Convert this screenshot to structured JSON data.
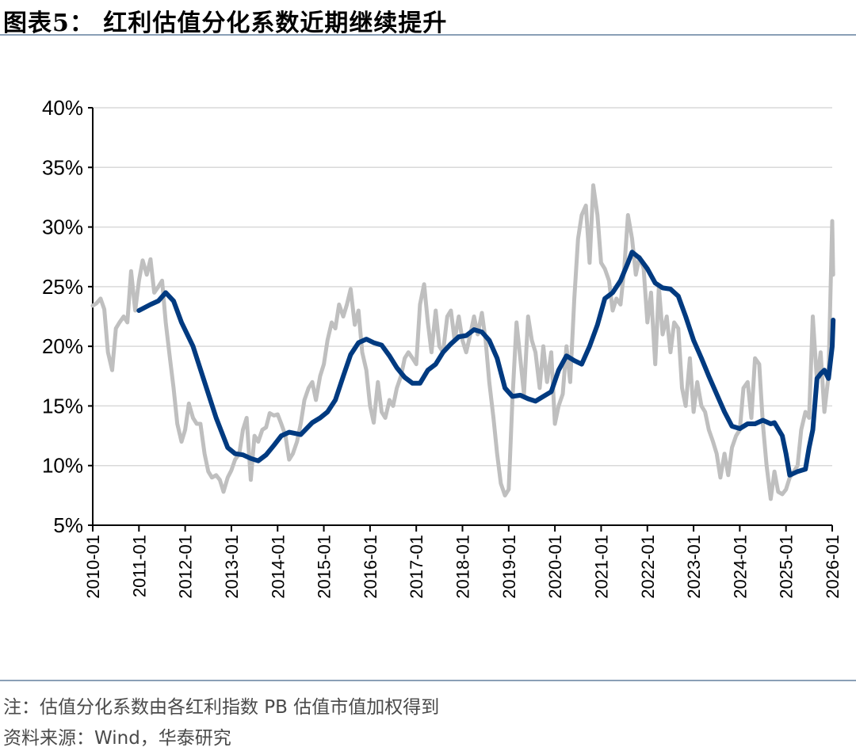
{
  "header": {
    "title": "图表5：  红利估值分化系数近期继续提升"
  },
  "footer": {
    "note": "注：估值分化系数由各红利指数 PB 估值市值加权得到",
    "source": "资料来源：Wind，华泰研究"
  },
  "chart_data": {
    "type": "line",
    "title": "",
    "xlabel": "",
    "ylabel": "",
    "ylim": [
      5,
      40
    ],
    "y_tick_labels": [
      "5%",
      "10%",
      "15%",
      "20%",
      "25%",
      "30%",
      "35%",
      "40%"
    ],
    "x_tick_labels": [
      "2010-01",
      "2011-01",
      "2012-01",
      "2013-01",
      "2014-01",
      "2015-01",
      "2016-01",
      "2017-01",
      "2018-01",
      "2019-01",
      "2020-01",
      "2021-01",
      "2022-01",
      "2023-01",
      "2024-01",
      "2025-01",
      "2026-01"
    ],
    "grid": "horizontal",
    "legend": "none",
    "series": [
      {
        "color": "#bfbfbf",
        "points": [
          [
            2010.0,
            23.4
          ],
          [
            2010.08,
            23.6
          ],
          [
            2010.17,
            24.0
          ],
          [
            2010.25,
            23.1
          ],
          [
            2010.33,
            19.5
          ],
          [
            2010.42,
            18.0
          ],
          [
            2010.5,
            21.5
          ],
          [
            2010.58,
            22.0
          ],
          [
            2010.67,
            22.5
          ],
          [
            2010.75,
            22.0
          ],
          [
            2010.83,
            26.3
          ],
          [
            2010.92,
            23.0
          ],
          [
            2011.0,
            25.5
          ],
          [
            2011.08,
            27.2
          ],
          [
            2011.17,
            26.0
          ],
          [
            2011.25,
            27.3
          ],
          [
            2011.33,
            24.5
          ],
          [
            2011.42,
            25.0
          ],
          [
            2011.5,
            25.5
          ],
          [
            2011.58,
            22.0
          ],
          [
            2011.67,
            19.0
          ],
          [
            2011.75,
            16.5
          ],
          [
            2011.83,
            13.5
          ],
          [
            2011.92,
            12.0
          ],
          [
            2012.0,
            13.0
          ],
          [
            2012.08,
            15.2
          ],
          [
            2012.17,
            14.0
          ],
          [
            2012.25,
            13.5
          ],
          [
            2012.33,
            13.5
          ],
          [
            2012.42,
            11.0
          ],
          [
            2012.5,
            9.5
          ],
          [
            2012.58,
            9.0
          ],
          [
            2012.67,
            9.2
          ],
          [
            2012.75,
            8.8
          ],
          [
            2012.83,
            7.8
          ],
          [
            2012.92,
            9.0
          ],
          [
            2013.0,
            9.6
          ],
          [
            2013.08,
            10.5
          ],
          [
            2013.17,
            11.0
          ],
          [
            2013.25,
            13.0
          ],
          [
            2013.33,
            14.0
          ],
          [
            2013.42,
            8.8
          ],
          [
            2013.5,
            12.5
          ],
          [
            2013.58,
            12.0
          ],
          [
            2013.67,
            13.0
          ],
          [
            2013.75,
            13.2
          ],
          [
            2013.83,
            14.4
          ],
          [
            2013.92,
            14.2
          ],
          [
            2014.0,
            14.3
          ],
          [
            2014.08,
            13.5
          ],
          [
            2014.17,
            12.5
          ],
          [
            2014.25,
            10.5
          ],
          [
            2014.33,
            11.0
          ],
          [
            2014.42,
            12.0
          ],
          [
            2014.5,
            13.5
          ],
          [
            2014.58,
            15.5
          ],
          [
            2014.67,
            16.5
          ],
          [
            2014.75,
            17.0
          ],
          [
            2014.83,
            15.5
          ],
          [
            2014.92,
            17.5
          ],
          [
            2015.0,
            18.5
          ],
          [
            2015.08,
            20.5
          ],
          [
            2015.17,
            22.0
          ],
          [
            2015.25,
            21.5
          ],
          [
            2015.33,
            23.5
          ],
          [
            2015.42,
            22.5
          ],
          [
            2015.5,
            23.5
          ],
          [
            2015.58,
            24.8
          ],
          [
            2015.67,
            21.8
          ],
          [
            2015.75,
            23.0
          ],
          [
            2015.83,
            19.5
          ],
          [
            2015.92,
            18.0
          ],
          [
            2016.0,
            15.0
          ],
          [
            2016.08,
            13.6
          ],
          [
            2016.17,
            17.0
          ],
          [
            2016.25,
            14.5
          ],
          [
            2016.33,
            14.0
          ],
          [
            2016.42,
            15.5
          ],
          [
            2016.5,
            15.0
          ],
          [
            2016.58,
            16.5
          ],
          [
            2016.67,
            17.5
          ],
          [
            2016.75,
            19.0
          ],
          [
            2016.83,
            19.5
          ],
          [
            2016.92,
            19.0
          ],
          [
            2017.0,
            18.5
          ],
          [
            2017.08,
            23.5
          ],
          [
            2017.17,
            25.2
          ],
          [
            2017.25,
            22.0
          ],
          [
            2017.33,
            19.5
          ],
          [
            2017.42,
            23.0
          ],
          [
            2017.5,
            20.0
          ],
          [
            2017.58,
            19.5
          ],
          [
            2017.67,
            22.5
          ],
          [
            2017.75,
            23.0
          ],
          [
            2017.83,
            20.5
          ],
          [
            2017.92,
            22.5
          ],
          [
            2018.0,
            20.5
          ],
          [
            2018.08,
            19.5
          ],
          [
            2018.17,
            21.0
          ],
          [
            2018.25,
            22.5
          ],
          [
            2018.33,
            21.0
          ],
          [
            2018.42,
            22.8
          ],
          [
            2018.5,
            20.5
          ],
          [
            2018.58,
            17.0
          ],
          [
            2018.67,
            14.0
          ],
          [
            2018.75,
            11.0
          ],
          [
            2018.83,
            8.5
          ],
          [
            2018.92,
            7.5
          ],
          [
            2019.0,
            8.0
          ],
          [
            2019.08,
            15.5
          ],
          [
            2019.17,
            22.0
          ],
          [
            2019.25,
            19.0
          ],
          [
            2019.33,
            16.0
          ],
          [
            2019.42,
            22.5
          ],
          [
            2019.5,
            20.5
          ],
          [
            2019.58,
            19.5
          ],
          [
            2019.67,
            16.5
          ],
          [
            2019.75,
            20.0
          ],
          [
            2019.83,
            17.0
          ],
          [
            2019.92,
            19.5
          ],
          [
            2020.0,
            13.5
          ],
          [
            2020.08,
            15.0
          ],
          [
            2020.17,
            16.0
          ],
          [
            2020.25,
            20.0
          ],
          [
            2020.33,
            17.0
          ],
          [
            2020.42,
            24.0
          ],
          [
            2020.5,
            29.0
          ],
          [
            2020.58,
            31.0
          ],
          [
            2020.67,
            31.8
          ],
          [
            2020.75,
            27.0
          ],
          [
            2020.83,
            33.5
          ],
          [
            2020.92,
            31.0
          ],
          [
            2021.0,
            27.0
          ],
          [
            2021.08,
            26.5
          ],
          [
            2021.17,
            25.5
          ],
          [
            2021.25,
            23.0
          ],
          [
            2021.33,
            24.0
          ],
          [
            2021.42,
            23.5
          ],
          [
            2021.5,
            26.5
          ],
          [
            2021.58,
            31.0
          ],
          [
            2021.67,
            29.0
          ],
          [
            2021.75,
            26.0
          ],
          [
            2021.83,
            27.5
          ],
          [
            2021.92,
            26.5
          ],
          [
            2022.0,
            22.0
          ],
          [
            2022.08,
            24.5
          ],
          [
            2022.17,
            18.5
          ],
          [
            2022.25,
            25.0
          ],
          [
            2022.33,
            21.0
          ],
          [
            2022.42,
            22.5
          ],
          [
            2022.5,
            19.5
          ],
          [
            2022.58,
            22.0
          ],
          [
            2022.67,
            21.5
          ],
          [
            2022.75,
            16.5
          ],
          [
            2022.83,
            15.0
          ],
          [
            2022.92,
            19.0
          ],
          [
            2023.0,
            14.5
          ],
          [
            2023.08,
            17.0
          ],
          [
            2023.17,
            15.0
          ],
          [
            2023.25,
            14.5
          ],
          [
            2023.33,
            13.0
          ],
          [
            2023.42,
            12.0
          ],
          [
            2023.5,
            11.0
          ],
          [
            2023.58,
            9.0
          ],
          [
            2023.67,
            11.0
          ],
          [
            2023.75,
            9.2
          ],
          [
            2023.83,
            11.5
          ],
          [
            2023.92,
            12.5
          ],
          [
            2024.0,
            13.0
          ],
          [
            2024.08,
            16.5
          ],
          [
            2024.17,
            17.0
          ],
          [
            2024.25,
            14.0
          ],
          [
            2024.33,
            19.0
          ],
          [
            2024.42,
            18.5
          ],
          [
            2024.5,
            13.5
          ],
          [
            2024.58,
            10.0
          ],
          [
            2024.67,
            7.2
          ],
          [
            2024.75,
            9.5
          ],
          [
            2024.83,
            7.8
          ],
          [
            2024.92,
            7.6
          ],
          [
            2025.0,
            8.0
          ],
          [
            2025.08,
            9.0
          ],
          [
            2025.17,
            9.5
          ],
          [
            2025.25,
            10.0
          ],
          [
            2025.33,
            13.0
          ],
          [
            2025.42,
            14.5
          ],
          [
            2025.5,
            14.0
          ],
          [
            2025.58,
            22.5
          ],
          [
            2025.67,
            17.0
          ],
          [
            2025.75,
            19.5
          ],
          [
            2025.83,
            14.5
          ],
          [
            2025.92,
            17.5
          ],
          [
            2026.0,
            30.5
          ],
          [
            2026.02,
            26.0
          ]
        ]
      },
      {
        "color": "#003a80",
        "points": [
          [
            2011.0,
            23.0
          ],
          [
            2011.25,
            23.5
          ],
          [
            2011.42,
            23.8
          ],
          [
            2011.58,
            24.5
          ],
          [
            2011.75,
            23.8
          ],
          [
            2011.92,
            22.0
          ],
          [
            2012.17,
            20.0
          ],
          [
            2012.42,
            17.0
          ],
          [
            2012.67,
            14.0
          ],
          [
            2012.92,
            11.5
          ],
          [
            2013.08,
            11.0
          ],
          [
            2013.25,
            10.9
          ],
          [
            2013.42,
            10.6
          ],
          [
            2013.58,
            10.4
          ],
          [
            2013.75,
            10.9
          ],
          [
            2013.92,
            11.7
          ],
          [
            2014.08,
            12.5
          ],
          [
            2014.25,
            12.8
          ],
          [
            2014.5,
            12.6
          ],
          [
            2014.75,
            13.6
          ],
          [
            2014.92,
            14.0
          ],
          [
            2015.08,
            14.5
          ],
          [
            2015.25,
            15.5
          ],
          [
            2015.42,
            17.5
          ],
          [
            2015.58,
            19.3
          ],
          [
            2015.75,
            20.3
          ],
          [
            2015.92,
            20.6
          ],
          [
            2016.08,
            20.3
          ],
          [
            2016.25,
            20.1
          ],
          [
            2016.42,
            19.2
          ],
          [
            2016.58,
            18.2
          ],
          [
            2016.75,
            17.4
          ],
          [
            2016.92,
            16.9
          ],
          [
            2017.08,
            16.9
          ],
          [
            2017.25,
            18.0
          ],
          [
            2017.42,
            18.5
          ],
          [
            2017.58,
            19.5
          ],
          [
            2017.75,
            20.2
          ],
          [
            2017.92,
            20.8
          ],
          [
            2018.08,
            20.9
          ],
          [
            2018.25,
            21.4
          ],
          [
            2018.42,
            21.2
          ],
          [
            2018.58,
            20.5
          ],
          [
            2018.75,
            19.0
          ],
          [
            2018.92,
            16.5
          ],
          [
            2019.08,
            15.8
          ],
          [
            2019.25,
            15.9
          ],
          [
            2019.42,
            15.6
          ],
          [
            2019.58,
            15.4
          ],
          [
            2019.75,
            15.8
          ],
          [
            2019.92,
            16.2
          ],
          [
            2020.08,
            18.0
          ],
          [
            2020.25,
            19.2
          ],
          [
            2020.42,
            18.8
          ],
          [
            2020.58,
            18.5
          ],
          [
            2020.75,
            20.0
          ],
          [
            2020.92,
            21.8
          ],
          [
            2021.08,
            24.0
          ],
          [
            2021.25,
            24.5
          ],
          [
            2021.42,
            25.5
          ],
          [
            2021.58,
            27.0
          ],
          [
            2021.67,
            27.9
          ],
          [
            2021.83,
            27.4
          ],
          [
            2022.0,
            26.5
          ],
          [
            2022.17,
            25.3
          ],
          [
            2022.33,
            24.9
          ],
          [
            2022.5,
            24.8
          ],
          [
            2022.67,
            24.2
          ],
          [
            2022.83,
            22.5
          ],
          [
            2023.0,
            20.5
          ],
          [
            2023.17,
            19.0
          ],
          [
            2023.33,
            17.5
          ],
          [
            2023.5,
            16.0
          ],
          [
            2023.67,
            14.5
          ],
          [
            2023.83,
            13.3
          ],
          [
            2024.0,
            13.1
          ],
          [
            2024.17,
            13.5
          ],
          [
            2024.33,
            13.5
          ],
          [
            2024.5,
            13.8
          ],
          [
            2024.67,
            13.5
          ],
          [
            2024.75,
            13.6
          ],
          [
            2024.92,
            12.5
          ],
          [
            2025.0,
            11.0
          ],
          [
            2025.08,
            9.2
          ],
          [
            2025.25,
            9.5
          ],
          [
            2025.42,
            9.7
          ],
          [
            2025.5,
            11.5
          ],
          [
            2025.58,
            13.0
          ],
          [
            2025.67,
            17.3
          ],
          [
            2025.75,
            17.7
          ],
          [
            2025.83,
            18.0
          ],
          [
            2025.92,
            17.3
          ],
          [
            2026.0,
            20.0
          ],
          [
            2026.02,
            22.2
          ]
        ]
      }
    ]
  }
}
